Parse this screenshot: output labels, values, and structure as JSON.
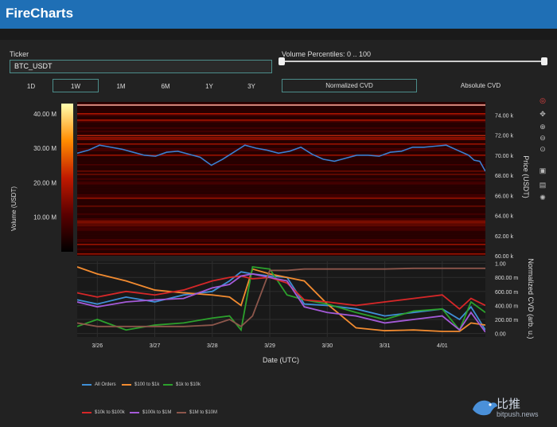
{
  "app": {
    "title": "FireCharts"
  },
  "controls": {
    "ticker_label": "Ticker",
    "ticker_value": "BTC_USDT",
    "volume_label": "Volume Percentiles: 0 .. 100",
    "timeframes": [
      {
        "label": "1D",
        "active": false
      },
      {
        "label": "1W",
        "active": true
      },
      {
        "label": "1M",
        "active": false
      },
      {
        "label": "6M",
        "active": false
      },
      {
        "label": "1Y",
        "active": false
      },
      {
        "label": "3Y",
        "active": false
      }
    ],
    "cvd_modes": [
      {
        "label": "Normalized CVD",
        "active": true
      },
      {
        "label": "Absolute CVD",
        "active": false
      }
    ]
  },
  "toolbar": [
    "color-wheel-icon",
    "pan-icon",
    "zoom-in-icon",
    "zoom-out-icon",
    "lasso-icon",
    "save-icon",
    "comment-icon",
    "reset-icon"
  ],
  "watermark": {
    "text": "比推",
    "sub": "bitpush.news"
  },
  "chart_data": [
    {
      "type": "heatmap",
      "title": "",
      "colorbar": {
        "label": "Volume (USDT)",
        "ticks": [
          "10.00 M",
          "20.00 M",
          "30.00 M",
          "40.00 M"
        ],
        "tick_values": [
          10,
          20,
          30,
          40
        ],
        "range": [
          0,
          43
        ]
      },
      "ylabel": "Price (USDT)",
      "y_ticks": [
        "60.00 k",
        "62.00 k",
        "64.00 k",
        "66.00 k",
        "68.00 k",
        "70.00 k",
        "72.00 k",
        "74.00 k"
      ],
      "y_tick_values": [
        60,
        62,
        64,
        66,
        68,
        70,
        72,
        74
      ],
      "ylim": [
        60,
        75.3
      ],
      "price_series": {
        "name": "",
        "color": "#3a7fd1",
        "x": [
          0,
          0.2,
          0.4,
          0.6,
          0.8,
          1,
          1.2,
          1.4,
          1.6,
          1.8,
          2,
          2.2,
          2.4,
          2.6,
          2.8,
          3,
          3.2,
          3.4,
          3.6,
          3.8,
          4,
          4.2,
          4.4,
          4.6,
          4.8,
          5,
          5.2,
          5.4,
          5.6,
          5.8,
          6,
          6.2,
          6.4,
          6.6,
          6.8,
          7,
          7.1,
          7.2,
          7.3
        ],
        "y": [
          70.2,
          70.5,
          71.0,
          70.8,
          70.6,
          70.3,
          70.0,
          69.9,
          70.3,
          70.4,
          70.1,
          69.8,
          69.0,
          69.6,
          70.3,
          71.0,
          70.7,
          70.5,
          70.2,
          70.4,
          70.8,
          70.1,
          69.6,
          69.4,
          69.7,
          70.0,
          70.0,
          69.9,
          70.3,
          70.4,
          70.8,
          70.8,
          70.9,
          71.0,
          70.5,
          70.0,
          69.5,
          69.4,
          68.4
        ]
      }
    },
    {
      "type": "line",
      "title": "",
      "xlabel": "Date (UTC)",
      "ylabel": "Normalized CVD (arb. u.)",
      "x_ticks": [
        "3/26",
        "3/27",
        "3/28",
        "3/29",
        "3/30",
        "3/31",
        "4/01"
      ],
      "x_tick_values": [
        0,
        1,
        2,
        3,
        4,
        5,
        6
      ],
      "xlim": [
        -0.35,
        6.75
      ],
      "y_ticks": [
        "0.00",
        "200.00 m",
        "400.00 m",
        "600.00 m",
        "800.00 m",
        "1.00"
      ],
      "y_tick_values": [
        0,
        0.2,
        0.4,
        0.6,
        0.8,
        1.0
      ],
      "ylim": [
        -0.05,
        1.03
      ],
      "x": [
        -0.35,
        0.0,
        0.5,
        1.0,
        1.5,
        2.0,
        2.3,
        2.5,
        2.7,
        3.0,
        3.3,
        3.6,
        4.0,
        4.5,
        5.0,
        5.5,
        6.0,
        6.3,
        6.5,
        6.75
      ],
      "series": [
        {
          "name": "All Orders",
          "color": "#3f8fd6",
          "values": [
            0.48,
            0.42,
            0.52,
            0.45,
            0.55,
            0.6,
            0.75,
            0.88,
            0.85,
            0.82,
            0.8,
            0.42,
            0.4,
            0.35,
            0.25,
            0.3,
            0.35,
            0.2,
            0.38,
            0.05
          ]
        },
        {
          "name": "$100 to $1k",
          "color": "#f28b30",
          "values": [
            0.95,
            0.85,
            0.75,
            0.62,
            0.58,
            0.55,
            0.52,
            0.4,
            0.92,
            0.85,
            0.8,
            0.75,
            0.42,
            0.08,
            0.04,
            0.05,
            0.03,
            0.03,
            0.15,
            0.12
          ]
        },
        {
          "name": "$1k to $10k",
          "color": "#2ca02c",
          "values": [
            0.1,
            0.2,
            0.05,
            0.12,
            0.15,
            0.22,
            0.25,
            0.05,
            0.95,
            0.92,
            0.55,
            0.48,
            0.42,
            0.3,
            0.2,
            0.32,
            0.35,
            0.05,
            0.45,
            0.3
          ]
        },
        {
          "name": "$10k to $100k",
          "color": "#d62728",
          "values": [
            0.58,
            0.52,
            0.6,
            0.55,
            0.62,
            0.75,
            0.8,
            0.82,
            0.78,
            0.8,
            0.72,
            0.48,
            0.45,
            0.4,
            0.45,
            0.5,
            0.55,
            0.35,
            0.5,
            0.4
          ]
        },
        {
          "name": "$100k to $1M",
          "color": "#a45ad8",
          "values": [
            0.45,
            0.38,
            0.45,
            0.48,
            0.5,
            0.65,
            0.7,
            0.82,
            0.85,
            0.8,
            0.75,
            0.38,
            0.3,
            0.25,
            0.15,
            0.2,
            0.25,
            0.05,
            0.3,
            0.02
          ]
        },
        {
          "name": "$1M to $10M",
          "color": "#8c564b",
          "values": [
            0.15,
            0.1,
            0.1,
            0.1,
            0.1,
            0.12,
            0.2,
            0.1,
            0.25,
            0.9,
            0.9,
            0.92,
            0.92,
            0.92,
            0.92,
            0.93,
            0.93,
            0.93,
            0.93,
            0.93
          ]
        }
      ],
      "legend": "bottom"
    }
  ]
}
